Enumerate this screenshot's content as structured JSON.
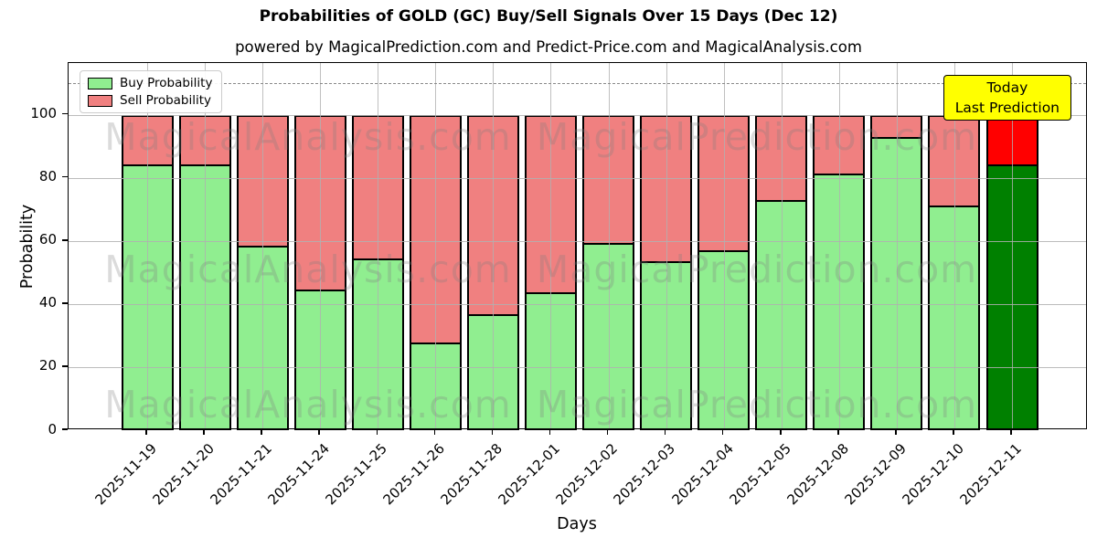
{
  "title": "Probabilities of GOLD (GC) Buy/Sell Signals Over 15 Days (Dec 12)",
  "subtitle": "powered by MagicalPrediction.com and Predict-Price.com and MagicalAnalysis.com",
  "axes": {
    "ylabel": "Probability",
    "xlabel": "Days",
    "yticks": [
      0,
      20,
      40,
      60,
      80,
      100
    ],
    "ymax": 116.4,
    "dashed_line_y": 110,
    "grid": "on"
  },
  "legend": {
    "position": "upper-left",
    "items": [
      {
        "label": "Buy Probability",
        "color": "#90ee90"
      },
      {
        "label": "Sell Probability",
        "color": "#f08080"
      }
    ]
  },
  "annotation_box": {
    "line1": "Today",
    "line2": "Last Prediction",
    "bg_color": "#ffff00"
  },
  "watermarks": {
    "left_text": "MagicalAnalysis.com",
    "right_text": "MagicalPrediction.com"
  },
  "colors": {
    "buy": "#90ee90",
    "sell": "#f08080",
    "today_buy": "#008000",
    "today_sell": "#ff0000",
    "bar_edge": "#000000"
  },
  "chart_data": {
    "type": "bar",
    "stacked": true,
    "title": "Probabilities of GOLD (GC) Buy/Sell Signals Over 15 Days (Dec 12)",
    "xlabel": "Days",
    "ylabel": "Probability",
    "ylim": [
      0,
      116.4
    ],
    "categories": [
      "2025-11-19",
      "2025-11-20",
      "2025-11-21",
      "2025-11-24",
      "2025-11-25",
      "2025-11-26",
      "2025-11-28",
      "2025-12-01",
      "2025-12-02",
      "2025-12-03",
      "2025-12-04",
      "2025-12-05",
      "2025-12-08",
      "2025-12-09",
      "2025-12-10",
      "2025-12-11"
    ],
    "series": [
      {
        "name": "Buy Probability",
        "values": [
          84,
          84,
          58,
          44,
          54,
          27,
          36,
          43,
          59,
          53,
          56.5,
          72.5,
          81,
          93,
          71,
          84
        ]
      },
      {
        "name": "Sell Probability",
        "values": [
          16,
          16,
          42,
          56,
          46,
          73,
          64,
          57,
          41,
          47,
          43.5,
          27.5,
          19,
          7,
          29,
          16
        ]
      }
    ],
    "today_bar_index": 15,
    "legend_entries": [
      "Buy Probability",
      "Sell Probability"
    ],
    "annotations": [
      "Today",
      "Last Prediction"
    ],
    "dashed_reference_line_y": 110
  }
}
